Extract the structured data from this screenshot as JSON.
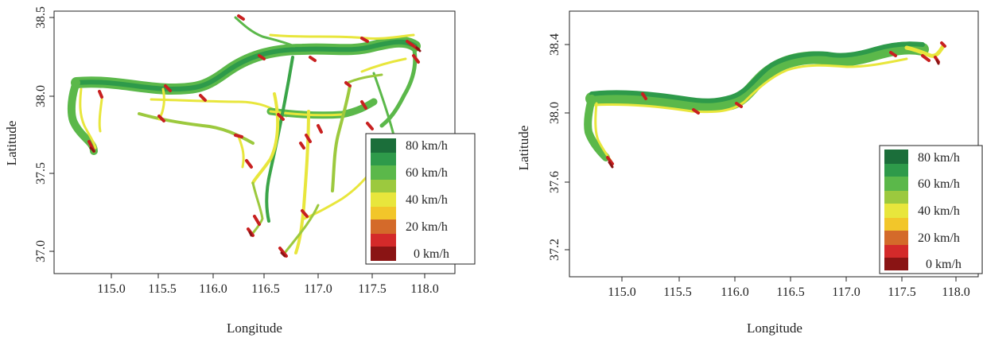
{
  "legend": {
    "labels": [
      "80 km/h",
      "60 km/h",
      "40 km/h",
      "20 km/h",
      "0 km/h"
    ],
    "colors": [
      "#1b6e3a",
      "#2e9a4a",
      "#5bb84a",
      "#9cc93e",
      "#e8e63c",
      "#f2c62a",
      "#d46a2a",
      "#d42a2a",
      "#8a1414"
    ]
  },
  "speed_colors": {
    "fast": "#2e9a4a",
    "medium": "#5bb84a",
    "slow_green": "#9cc93e",
    "yellow": "#e8e63c",
    "orange": "#d46a2a",
    "red": "#c82020",
    "dark_red": "#8a1414"
  },
  "maps": [
    {
      "id": "left",
      "xlabel": "Longitude",
      "ylabel": "Latitude",
      "xticks": [
        "115.0",
        "115.5",
        "116.0",
        "116.5",
        "117.0",
        "117.5",
        "118.0"
      ],
      "yticks": [
        "37.0",
        "37.5",
        "38.0",
        "38.5"
      ]
    },
    {
      "id": "right",
      "xlabel": "Longitude",
      "ylabel": "Latitude",
      "xticks": [
        "115.0",
        "115.5",
        "116.0",
        "116.5",
        "117.0",
        "117.5",
        "118.0"
      ],
      "yticks": [
        "37.2",
        "37.6",
        "38.0",
        "38.4"
      ]
    }
  ]
}
